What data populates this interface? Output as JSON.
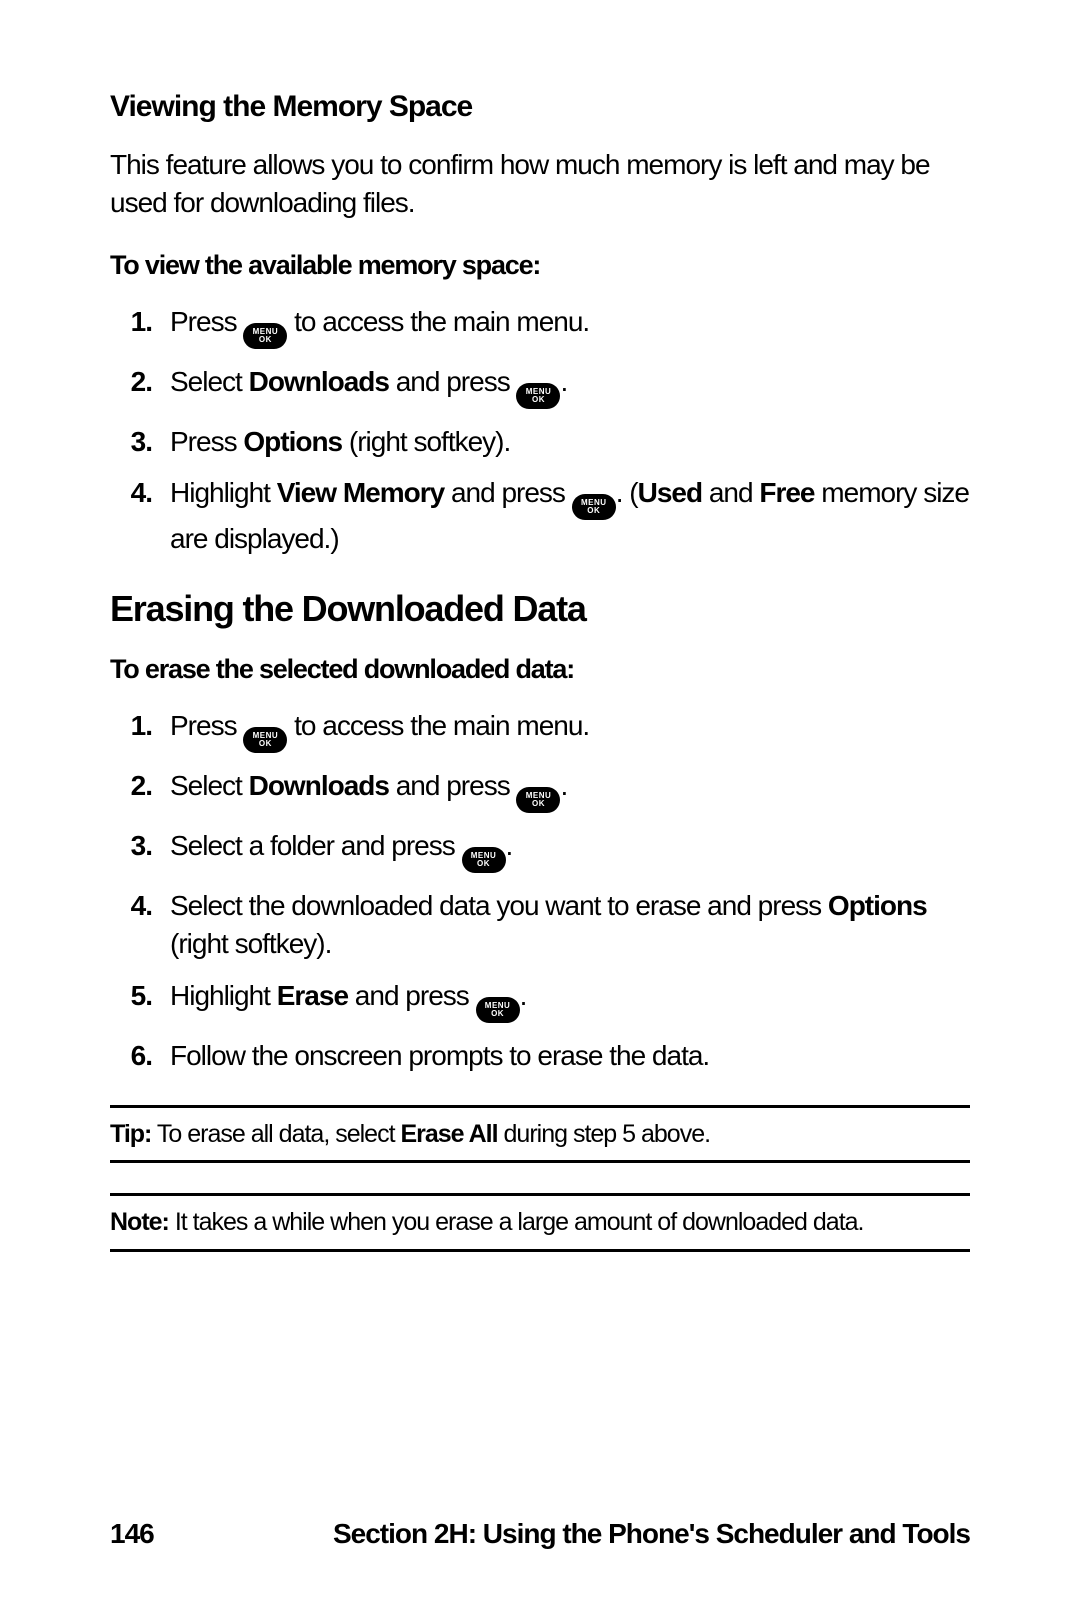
{
  "section1": {
    "heading": "Viewing the Memory Space",
    "intro": "This feature allows you to confirm how much memory is left and may be used for downloading files.",
    "leadin": "To view the available memory space:",
    "steps": {
      "s1a": "Press ",
      "s1b": " to access the main menu.",
      "s2a": "Select ",
      "s2bold": "Downloads",
      "s2b": " and press ",
      "s2c": ".",
      "s3a": "Press ",
      "s3bold": "Options",
      "s3b": " (right softkey).",
      "s4a": "Highlight ",
      "s4bold1": "View Memory",
      "s4b": " and press ",
      "s4c": ". (",
      "s4bold2": "Used",
      "s4d": " and ",
      "s4bold3": "Free",
      "s4e": " memory size are displayed.)"
    }
  },
  "section2": {
    "heading": "Erasing the Downloaded Data",
    "leadin": "To erase the selected downloaded data:",
    "steps": {
      "s1a": "Press ",
      "s1b": " to access the main menu.",
      "s2a": "Select ",
      "s2bold": "Downloads",
      "s2b": " and press ",
      "s2c": ".",
      "s3a": "Select a folder and press ",
      "s3b": ".",
      "s4a": "Select the downloaded data you want to erase and press ",
      "s4bold": "Options",
      "s4b": " (right softkey).",
      "s5a": "Highlight ",
      "s5bold": "Erase",
      "s5b": " and press ",
      "s5c": ".",
      "s6": "Follow the onscreen prompts to erase the data."
    }
  },
  "tip": {
    "label": "Tip:",
    "a": " To erase all data, select ",
    "bold": "Erase All",
    "b": " during step 5 above."
  },
  "note": {
    "label": "Note:",
    "text": " It takes a while when you erase a large amount of downloaded data."
  },
  "footer": {
    "page": "146",
    "section": "Section 2H: Using the Phone's Scheduler and Tools"
  },
  "icon": {
    "line1": "MENU",
    "line2": "OK"
  },
  "nums": {
    "n1": "1.",
    "n2": "2.",
    "n3": "3.",
    "n4": "4.",
    "n5": "5.",
    "n6": "6."
  }
}
